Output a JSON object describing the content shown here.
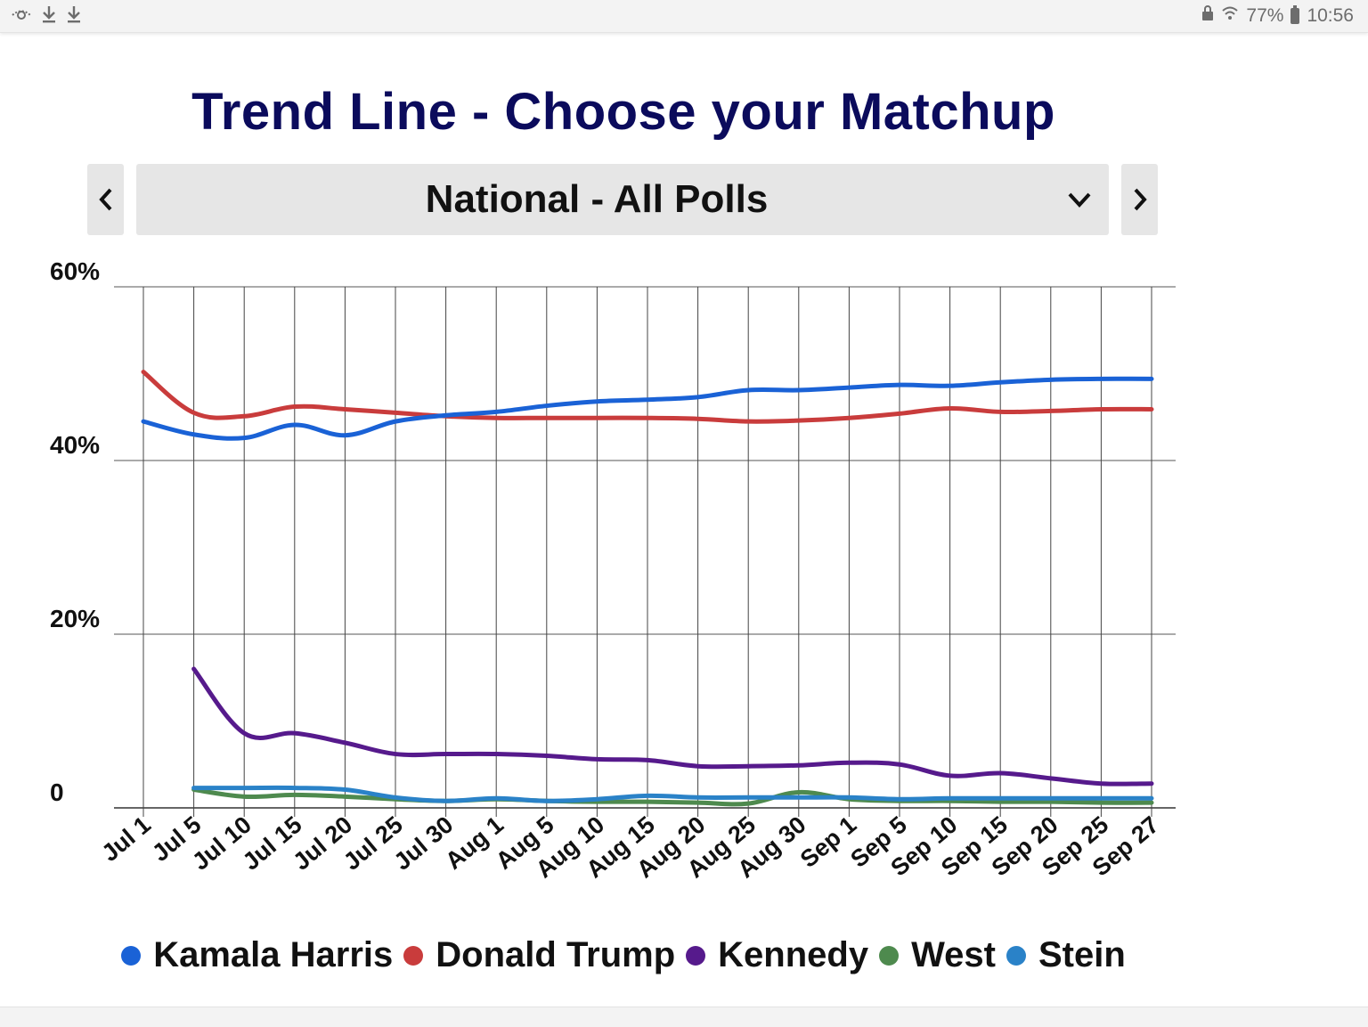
{
  "status_bar": {
    "left_icons": [
      "visibility-icon",
      "download-icon",
      "download-icon"
    ],
    "battery": "77%",
    "time": "10:56"
  },
  "title": "Trend Line - Choose your Matchup",
  "selector": {
    "value": "National - All Polls",
    "prev_icon": "chevron-left-icon",
    "next_icon": "chevron-right-icon"
  },
  "chart_data": {
    "type": "line",
    "x": [
      "Jul 1",
      "Jul 5",
      "Jul 10",
      "Jul 15",
      "Jul 20",
      "Jul 25",
      "Jul 30",
      "Aug 1",
      "Aug 5",
      "Aug 10",
      "Aug 15",
      "Aug 20",
      "Aug 25",
      "Aug 30",
      "Sep 1",
      "Sep 5",
      "Sep 10",
      "Sep 15",
      "Sep 20",
      "Sep 25",
      "Sep 27"
    ],
    "y_ticks": [
      "60%",
      "40%",
      "20%",
      "0"
    ],
    "ylim": [
      0,
      60
    ],
    "grid": true,
    "legend_position": "bottom",
    "series": [
      {
        "name": "Kamala Harris",
        "color": "#1a62d6",
        "values": [
          44.5,
          43,
          42.6,
          44.1,
          42.9,
          44.5,
          45.2,
          45.6,
          46.3,
          46.8,
          47,
          47.3,
          48.1,
          48.1,
          48.4,
          48.7,
          48.6,
          49,
          49.3,
          49.4,
          49.4
        ]
      },
      {
        "name": "Donald Trump",
        "color": "#c93c3c",
        "values": [
          50.2,
          45.5,
          45.1,
          46.2,
          45.9,
          45.5,
          45.1,
          44.9,
          44.9,
          44.9,
          44.9,
          44.8,
          44.5,
          44.6,
          44.9,
          45.4,
          46,
          45.6,
          45.7,
          45.9,
          45.9
        ]
      },
      {
        "name": "Kennedy",
        "color": "#561a8c",
        "values": [
          null,
          16,
          8.6,
          8.6,
          7.5,
          6.2,
          6.2,
          6.2,
          6,
          5.6,
          5.5,
          4.8,
          4.8,
          4.9,
          5.2,
          5,
          3.7,
          4,
          3.4,
          2.8,
          2.8
        ]
      },
      {
        "name": "West",
        "color": "#4e8a4e",
        "values": [
          null,
          2.1,
          1.3,
          1.5,
          1.3,
          1,
          0.8,
          1,
          0.8,
          0.7,
          0.7,
          0.6,
          0.5,
          1.8,
          1,
          0.8,
          0.8,
          0.7,
          0.7,
          0.6,
          0.6
        ]
      },
      {
        "name": "Stein",
        "color": "#2a82c8",
        "values": [
          null,
          2.3,
          2.3,
          2.3,
          2.1,
          1.2,
          0.8,
          1.1,
          0.8,
          1,
          1.4,
          1.2,
          1.2,
          1.2,
          1.2,
          1,
          1.1,
          1.1,
          1.1,
          1.1,
          1.1
        ]
      }
    ]
  }
}
